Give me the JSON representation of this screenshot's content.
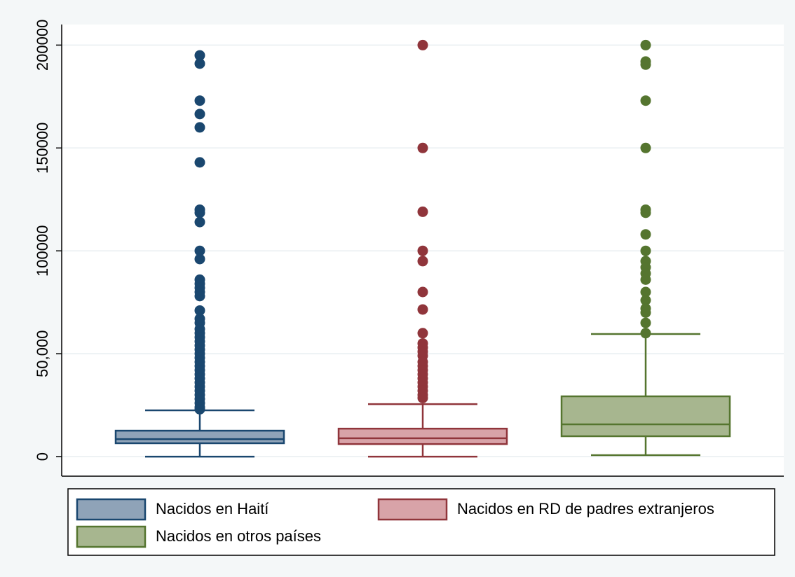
{
  "chart_data": {
    "type": "box",
    "ylim": [
      -9500,
      210000
    ],
    "yticks": [
      0,
      {
        "value": 50000,
        "label": "50,000"
      },
      100000,
      150000,
      200000
    ],
    "grid": true,
    "legend": "bottom",
    "series": [
      {
        "name": "Nacidos en Haití",
        "color": "#8fa3b8",
        "edge_color": "#1a476f",
        "stats": {
          "whisker_low": 0,
          "q1": 6500,
          "median": 8500,
          "q3": 12600,
          "whisker_high": 22500
        },
        "outliers": [
          195000,
          191000,
          173000,
          166500,
          160000,
          143000,
          120000,
          118500,
          114000,
          100000,
          96000,
          86000,
          84000,
          82000,
          80000,
          78000,
          71000,
          67000,
          65000,
          62000,
          60000,
          58000,
          56000,
          54000,
          52000,
          50000,
          48000,
          46000,
          44000,
          42000,
          40000,
          38000,
          36000,
          34000,
          32000,
          30000,
          28000,
          26000,
          24000,
          23000
        ]
      },
      {
        "name": "Nacidos en RD de padres extranjeros",
        "color": "#d8a3a8",
        "edge_color": "#90353b",
        "stats": {
          "whisker_low": 0,
          "q1": 6100,
          "median": 8900,
          "q3": 13600,
          "whisker_high": 25500
        },
        "outliers": [
          200000,
          150000,
          119000,
          100000,
          95000,
          80000,
          71500,
          60000,
          55000,
          53000,
          51000,
          49000,
          46000,
          44000,
          42000,
          40000,
          38000,
          36000,
          34000,
          32000,
          30000,
          28500
        ]
      },
      {
        "name": "Nacidos en otros países",
        "color": "#a7b68f",
        "edge_color": "#55752f",
        "stats": {
          "whisker_low": 700,
          "q1": 9900,
          "median": 15700,
          "q3": 29300,
          "whisker_high": 59600
        },
        "outliers": [
          200000,
          192000,
          190500,
          173000,
          150000,
          120000,
          118500,
          108000,
          100000,
          95000,
          92000,
          89000,
          86000,
          80000,
          76000,
          72000,
          70000,
          65000,
          60000
        ]
      }
    ]
  }
}
